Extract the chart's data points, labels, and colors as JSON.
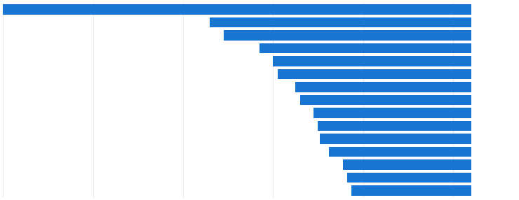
{
  "values": [
    5200000,
    2900000,
    2750000,
    2350000,
    2200000,
    2150000,
    1950000,
    1900000,
    1750000,
    1700000,
    1680000,
    1580000,
    1420000,
    1380000,
    1330000
  ],
  "bar_color": "#1875d1",
  "background_color": "#ffffff",
  "grid_color": "#e8e8e8",
  "bar_height": 0.78,
  "xlim": [
    0,
    5700000
  ],
  "figsize": [
    7.4,
    2.86
  ],
  "dpi": 100,
  "right_align": true,
  "max_value": 5200000
}
